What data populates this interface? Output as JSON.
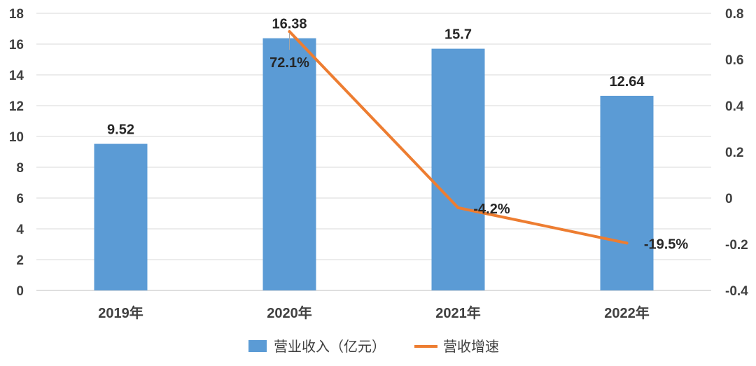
{
  "chart_data": {
    "type": "bar",
    "categories": [
      "2019年",
      "2020年",
      "2021年",
      "2022年"
    ],
    "series": [
      {
        "name": "营业收入（亿元）",
        "type": "bar",
        "axis": "left",
        "values": [
          9.52,
          16.38,
          15.7,
          12.64
        ],
        "labels": [
          "9.52",
          "16.38",
          "15.7",
          "12.64"
        ],
        "color": "#5B9BD5"
      },
      {
        "name": "营收增速",
        "type": "line",
        "axis": "right",
        "values": [
          null,
          0.721,
          -0.042,
          -0.195
        ],
        "labels": [
          "",
          "72.1%",
          "-4.2%",
          "-19.5%"
        ],
        "color": "#ED7D31"
      }
    ],
    "y_left": {
      "ylim": [
        0,
        18
      ],
      "ticks": [
        "0",
        "2",
        "4",
        "6",
        "8",
        "10",
        "12",
        "14",
        "16",
        "18"
      ]
    },
    "y_right": {
      "ylim": [
        -0.4,
        0.8
      ],
      "ticks": [
        "-0.4",
        "-0.2",
        "0",
        "0.2",
        "0.4",
        "0.6",
        "0.8"
      ]
    },
    "grid": true,
    "legend_position": "bottom"
  }
}
